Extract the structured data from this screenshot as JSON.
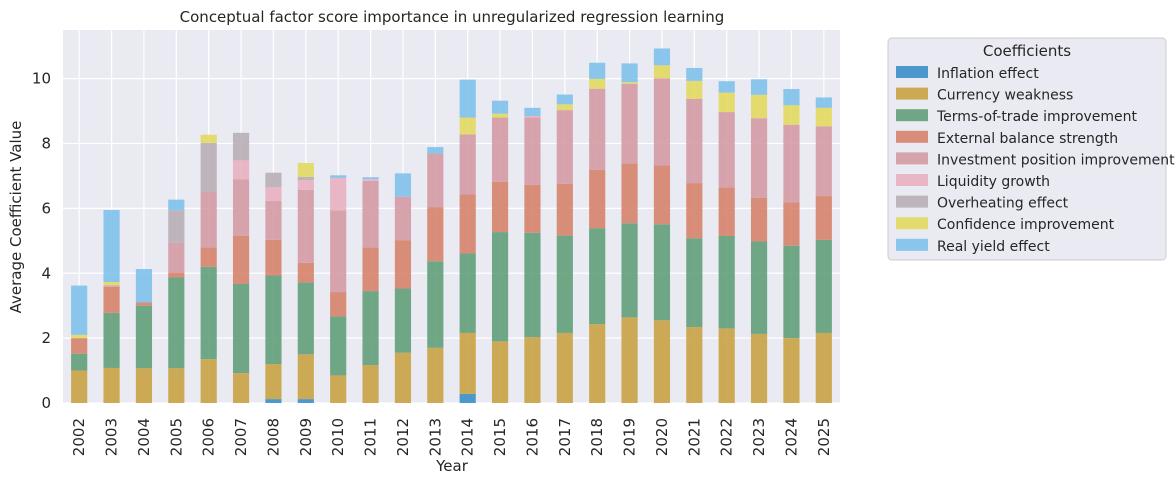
{
  "chart_data": {
    "type": "bar",
    "stacked": true,
    "title": "Conceptual factor score importance in unregularized regression learning",
    "xlabel": "Year",
    "ylabel": "Average Coefficient Value",
    "ylim": [
      0,
      11.5
    ],
    "yticks": [
      0,
      2,
      4,
      6,
      8,
      10
    ],
    "grid": true,
    "legend_position": "outside-right",
    "legend_title": "Coefficients",
    "categories": [
      "2002",
      "2003",
      "2004",
      "2005",
      "2006",
      "2007",
      "2008",
      "2009",
      "2010",
      "2011",
      "2012",
      "2013",
      "2014",
      "2015",
      "2016",
      "2017",
      "2018",
      "2019",
      "2020",
      "2021",
      "2022",
      "2023",
      "2024",
      "2025"
    ],
    "series": [
      {
        "name": "Inflation effect",
        "color": "#3b8fc8",
        "values": [
          0,
          0,
          0,
          0,
          0,
          0,
          0.12,
          0.12,
          0,
          0,
          0,
          0,
          0.28,
          0,
          0,
          0,
          0,
          0,
          0,
          0,
          0,
          0,
          0,
          0
        ]
      },
      {
        "name": "Currency weakness",
        "color": "#c9a244",
        "values": [
          1.0,
          1.08,
          1.07,
          1.07,
          1.35,
          0.92,
          1.08,
          1.38,
          0.85,
          1.17,
          1.55,
          1.7,
          1.88,
          1.9,
          2.03,
          2.16,
          2.43,
          2.64,
          2.55,
          2.34,
          2.3,
          2.13,
          2.0,
          2.16
        ]
      },
      {
        "name": "Terms-of-trade improvement",
        "color": "#62a07a",
        "values": [
          0.52,
          1.7,
          1.93,
          2.8,
          2.85,
          2.75,
          2.73,
          2.22,
          1.82,
          2.28,
          1.98,
          2.67,
          2.45,
          3.37,
          3.22,
          3.0,
          2.96,
          2.9,
          2.96,
          2.74,
          2.85,
          2.85,
          2.85,
          2.87
        ]
      },
      {
        "name": "External balance strength",
        "color": "#d6836b",
        "values": [
          0.48,
          0.8,
          0.1,
          0.15,
          0.6,
          1.48,
          1.1,
          0.6,
          0.75,
          1.35,
          1.48,
          1.67,
          1.82,
          1.55,
          1.48,
          1.6,
          1.8,
          1.85,
          1.82,
          1.7,
          1.5,
          1.35,
          1.33,
          1.35
        ]
      },
      {
        "name": "Investment position improvement",
        "color": "#d49ba4",
        "values": [
          0,
          0.05,
          0,
          0.92,
          1.72,
          1.75,
          1.2,
          2.25,
          2.52,
          2.05,
          1.35,
          1.65,
          1.85,
          1.98,
          2.07,
          2.27,
          2.5,
          2.45,
          2.68,
          2.6,
          2.32,
          2.45,
          2.4,
          2.15
        ]
      },
      {
        "name": "Liquidity growth",
        "color": "#e8b0c0",
        "values": [
          0,
          0,
          0,
          0,
          0,
          0.58,
          0.42,
          0.3,
          1.0,
          0.05,
          0,
          0,
          0,
          0,
          0.05,
          0,
          0,
          0,
          0,
          0,
          0,
          0,
          0,
          0
        ]
      },
      {
        "name": "Overheating effect",
        "color": "#b9aeb6",
        "values": [
          0,
          0,
          0,
          1.0,
          1.5,
          0.85,
          0.45,
          0.1,
          0,
          0,
          0,
          0,
          0,
          0,
          0,
          0,
          0,
          0,
          0,
          0,
          0,
          0,
          0,
          0
        ]
      },
      {
        "name": "Confidence improvement",
        "color": "#e2d95e",
        "values": [
          0.1,
          0.1,
          0,
          0,
          0.25,
          0,
          0,
          0.43,
          0,
          0,
          0,
          0,
          0.52,
          0.12,
          0,
          0.18,
          0.3,
          0.05,
          0.4,
          0.55,
          0.6,
          0.72,
          0.6,
          0.57
        ]
      },
      {
        "name": "Real yield effect",
        "color": "#7fc1ea",
        "values": [
          1.52,
          2.22,
          1.03,
          0.33,
          0,
          0,
          0,
          0,
          0.08,
          0.06,
          0.72,
          0.2,
          1.17,
          0.4,
          0.25,
          0.3,
          0.5,
          0.58,
          0.52,
          0.4,
          0.35,
          0.48,
          0.5,
          0.32
        ]
      }
    ]
  }
}
